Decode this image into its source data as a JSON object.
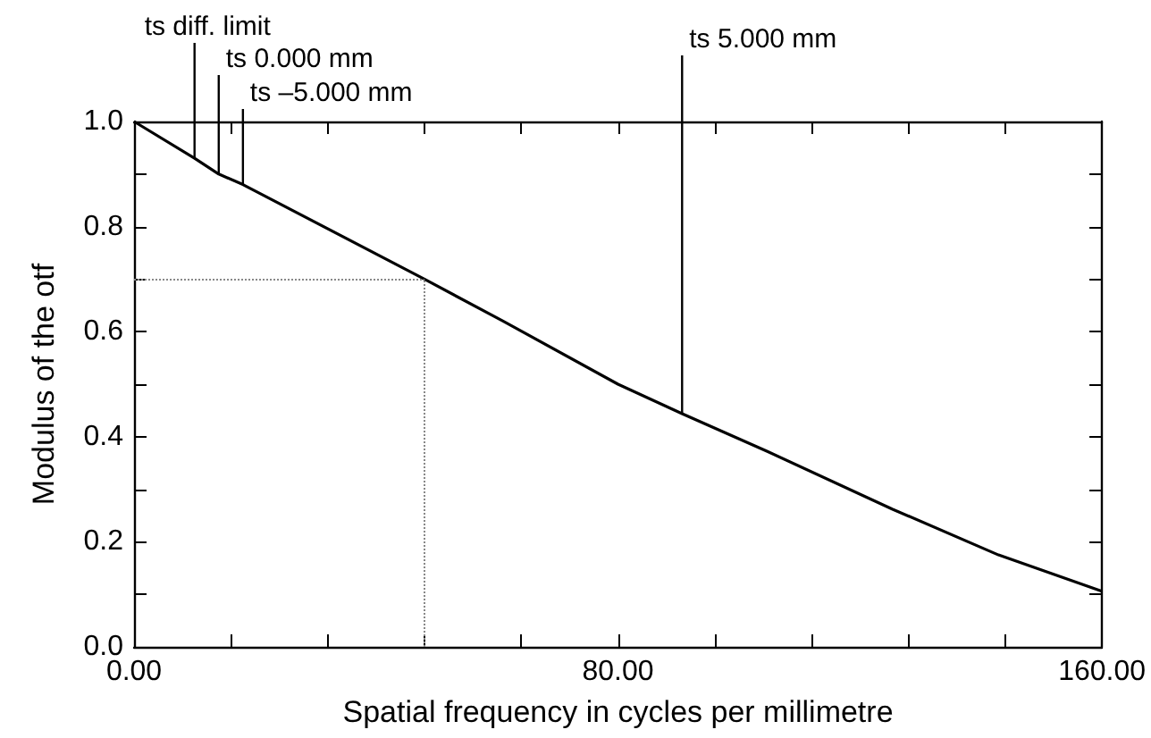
{
  "chart_data": {
    "type": "line",
    "xlabel": "Spatial frequency in cycles per millimetre",
    "ylabel": "Modulus of the otf",
    "x": [
      0,
      10,
      14,
      18,
      48,
      61,
      80,
      90.6,
      104.7,
      125.4,
      142.9,
      160
    ],
    "series": [
      {
        "color": "#000000",
        "values": [
          1.0,
          0.93,
          0.9,
          0.88,
          0.7,
          0.62,
          0.5,
          0.444,
          0.372,
          0.262,
          0.175,
          0.106
        ]
      }
    ],
    "xlim": [
      0,
      160
    ],
    "xticks": [
      {
        "value": 0,
        "label": "0.00"
      },
      {
        "value": 16,
        "label": null
      },
      {
        "value": 32,
        "label": null
      },
      {
        "value": 48,
        "label": null
      },
      {
        "value": 64,
        "label": null
      },
      {
        "value": 80,
        "label": "80.00"
      },
      {
        "value": 96,
        "label": null
      },
      {
        "value": 112,
        "label": null
      },
      {
        "value": 128,
        "label": null
      },
      {
        "value": 144,
        "label": null
      },
      {
        "value": 160,
        "label": "160.00"
      }
    ],
    "ylim": [
      0,
      1
    ],
    "yticks": [
      {
        "value": 0,
        "label": "0.0"
      },
      {
        "value": 0.1,
        "label": null
      },
      {
        "value": 0.2,
        "label": "0.2"
      },
      {
        "value": 0.3,
        "label": null
      },
      {
        "value": 0.4,
        "label": "0.4"
      },
      {
        "value": 0.5,
        "label": null
      },
      {
        "value": 0.6,
        "label": "0.6"
      },
      {
        "value": 0.7,
        "label": null
      },
      {
        "value": 0.8,
        "label": "0.8"
      },
      {
        "value": 0.9,
        "label": null
      },
      {
        "value": 1.0,
        "label": "1.0"
      }
    ],
    "ref_lines": [
      {
        "axis": "x",
        "value": 48,
        "color": "#888888",
        "line_style": "dotted"
      },
      {
        "axis": "y",
        "value": 0.7,
        "color": "#888888",
        "line_style": "dotted"
      }
    ],
    "annotations": [
      {
        "text": "ts diff. limit",
        "x": 10,
        "y": 0.93
      },
      {
        "text": "ts 0.000 mm",
        "x": 14,
        "y": 0.9
      },
      {
        "text": "ts –5.000 mm",
        "x": 18,
        "y": 0.88
      },
      {
        "text": "ts 5.000 mm",
        "x": 90.6,
        "y": 0.444
      }
    ],
    "grid": false,
    "marker": "none",
    "line_style": "solid"
  }
}
